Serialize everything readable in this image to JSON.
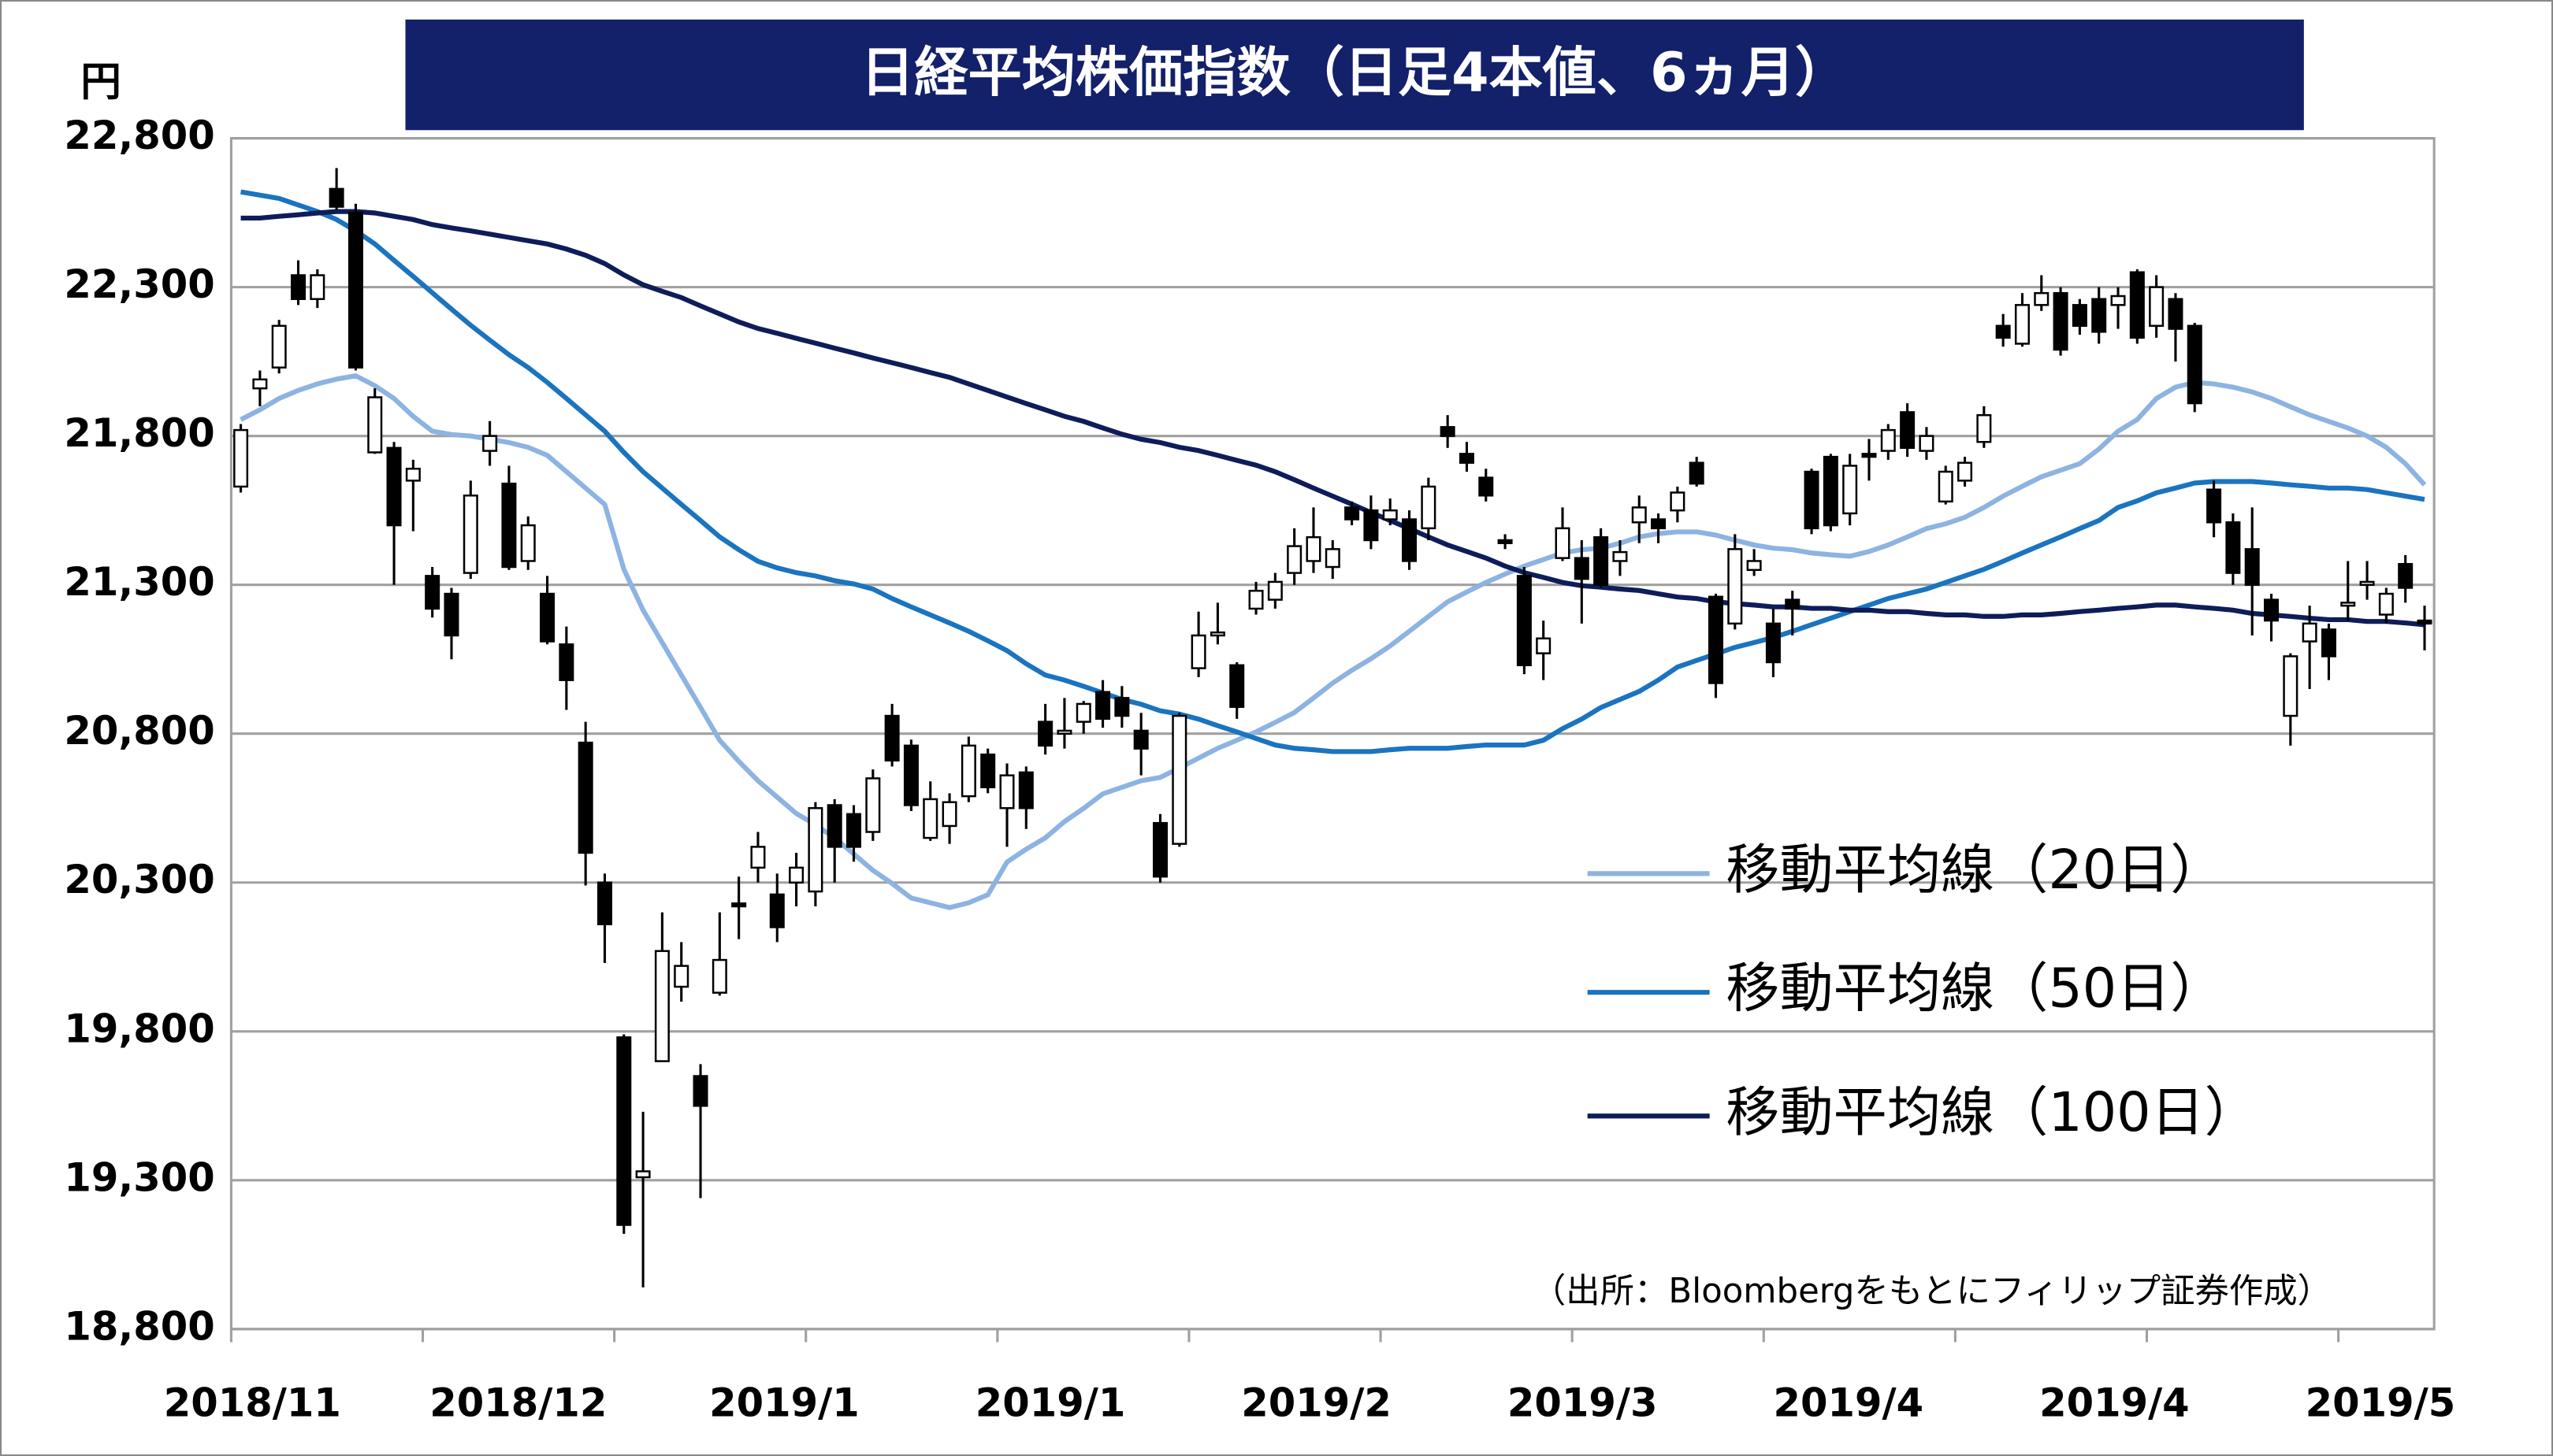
{
  "chart_data": {
    "type": "candlestick",
    "title": "日経平均株価指数（日足4本値、6ヵ月）",
    "y_unit": "円",
    "source": "（出所：Bloombergをもとにフィリップ証券作成）",
    "x_labels": [
      "2018/11",
      "2018/12",
      "2019/1",
      "2019/1",
      "2019/2",
      "2019/3",
      "2019/4",
      "2019/4",
      "2019/5"
    ],
    "ylim": [
      18800,
      22800
    ],
    "yticks": [
      {
        "value": 18800,
        "label": "18,800"
      },
      {
        "value": 19300,
        "label": "19,300"
      },
      {
        "value": 19800,
        "label": "19,800"
      },
      {
        "value": 20300,
        "label": "20,300"
      },
      {
        "value": 20800,
        "label": "20,800"
      },
      {
        "value": 21300,
        "label": "21,300"
      },
      {
        "value": 21800,
        "label": "21,800"
      },
      {
        "value": 22300,
        "label": "22,300"
      },
      {
        "value": 22800,
        "label": "22,800"
      }
    ],
    "grid": true,
    "up_color": "#ffffff",
    "down_color": "#000000",
    "open": [
      21630,
      21960,
      22030,
      22340,
      22260,
      22630,
      22550,
      21745,
      21760,
      21650,
      21330,
      21270,
      21340,
      21750,
      21640,
      21380,
      21270,
      21100,
      20770,
      20300,
      19780,
      19310,
      19700,
      19950,
      19650,
      19930,
      20230,
      20350,
      20260,
      20300,
      20270,
      20560,
      20530,
      20470,
      20860,
      20760,
      20450,
      20490,
      20590,
      20730,
      20550,
      20670,
      20840,
      20800,
      20840,
      20940,
      20920,
      20810,
      20500,
      20430,
      21020,
      21130,
      21030,
      21220,
      21250,
      21340,
      21380,
      21360,
      21560,
      21550,
      21520,
      21520,
      21490,
      21830,
      21740,
      21660,
      21450,
      21330,
      21070,
      21390,
      21390,
      21460,
      21380,
      21510,
      21520,
      21550,
      21710,
      21260,
      21170,
      21350,
      21170,
      21250,
      21680,
      21730,
      21540,
      21740,
      21750,
      21880,
      21750,
      21580,
      21650,
      21780,
      22170,
      22110,
      22240,
      22280,
      22240,
      22260,
      22240,
      22350,
      22170,
      22260,
      22170,
      21620,
      21510,
      21420,
      21250,
      20860,
      21110,
      21150,
      21230,
      21300,
      21200,
      21370,
      21180
    ],
    "high": [
      21840,
      22020,
      22190,
      22390,
      22360,
      22700,
      22580,
      21960,
      21780,
      21720,
      21360,
      21290,
      21650,
      21850,
      21700,
      21530,
      21330,
      21160,
      20840,
      20330,
      19790,
      19530,
      20200,
      20100,
      19690,
      20200,
      20320,
      20470,
      20330,
      20400,
      20570,
      20580,
      20560,
      20680,
      20900,
      20780,
      20640,
      20600,
      20790,
      20750,
      20700,
      20690,
      20900,
      20920,
      20910,
      20980,
      20960,
      20870,
      20530,
      20870,
      21210,
      21240,
      21040,
      21310,
      21340,
      21490,
      21560,
      21450,
      21580,
      21600,
      21590,
      21550,
      21660,
      21870,
      21780,
      21690,
      21470,
      21360,
      21180,
      21560,
      21450,
      21490,
      21450,
      21600,
      21540,
      21630,
      21730,
      21270,
      21470,
      21420,
      21220,
      21280,
      21690,
      21740,
      21740,
      21790,
      21840,
      21910,
      21830,
      21700,
      21730,
      21900,
      22210,
      22280,
      22340,
      22300,
      22260,
      22300,
      22300,
      22360,
      22340,
      22280,
      22180,
      21650,
      21540,
      21560,
      21270,
      21070,
      21230,
      21170,
      21380,
      21380,
      21290,
      21400,
      21230
    ],
    "low": [
      21610,
      21900,
      22010,
      22240,
      22230,
      22560,
      22020,
      21740,
      21300,
      21480,
      21190,
      21050,
      21320,
      21700,
      21350,
      21350,
      21100,
      20880,
      20290,
      20030,
      19120,
      18940,
      19700,
      19900,
      19240,
      19920,
      20110,
      20300,
      20100,
      20220,
      20220,
      20300,
      20370,
      20440,
      20690,
      20540,
      20440,
      20430,
      20570,
      20600,
      20420,
      20480,
      20730,
      20750,
      20800,
      20820,
      20820,
      20660,
      20300,
      20420,
      20990,
      21100,
      20850,
      21200,
      21220,
      21300,
      21340,
      21320,
      21500,
      21420,
      21500,
      21350,
      21450,
      21760,
      21680,
      21580,
      21420,
      21000,
      20980,
      21380,
      21170,
      21290,
      21330,
      21440,
      21440,
      21510,
      21630,
      20920,
      21150,
      21330,
      20990,
      21130,
      21470,
      21480,
      21500,
      21650,
      21720,
      21730,
      21720,
      21570,
      21630,
      21760,
      22100,
      22100,
      22220,
      22070,
      22140,
      22110,
      22160,
      22110,
      22130,
      22050,
      21880,
      21460,
      21300,
      21130,
      21110,
      20760,
      20950,
      20980,
      21180,
      21250,
      21170,
      21240,
      21080
    ],
    "close": [
      21820,
      21990,
      22170,
      22260,
      22340,
      22570,
      22030,
      21930,
      21500,
      21690,
      21220,
      21130,
      21600,
      21800,
      21360,
      21500,
      21110,
      20980,
      20400,
      20160,
      19150,
      19330,
      20070,
      20020,
      19550,
      20040,
      20220,
      20420,
      20150,
      20350,
      20550,
      20420,
      20420,
      20650,
      20710,
      20560,
      20580,
      20570,
      20760,
      20620,
      20660,
      20550,
      20760,
      20810,
      20900,
      20850,
      20860,
      20750,
      20320,
      20860,
      21130,
      21140,
      20890,
      21280,
      21310,
      21430,
      21460,
      21420,
      21520,
      21450,
      21550,
      21380,
      21630,
      21800,
      21710,
      21600,
      21440,
      21030,
      21120,
      21490,
      21320,
      21300,
      21410,
      21560,
      21490,
      21610,
      21640,
      20970,
      21420,
      21380,
      21040,
      21220,
      21490,
      21500,
      21700,
      21730,
      21820,
      21760,
      21800,
      21680,
      21710,
      21870,
      22130,
      22240,
      22280,
      22090,
      22170,
      22150,
      22270,
      22130,
      22300,
      22160,
      21910,
      21510,
      21340,
      21300,
      21180,
      21060,
      21170,
      21060,
      21240,
      21310,
      21270,
      21290,
      21170
    ],
    "series": [
      {
        "name": "移動平均線（20日）",
        "color": "#8db3e2",
        "values": [
          21855,
          21888,
          21926,
          21953,
          21975,
          21991,
          22002,
          21969,
          21926,
          21866,
          21816,
          21805,
          21800,
          21789,
          21778,
          21762,
          21735,
          21680,
          21625,
          21570,
          21352,
          21215,
          21106,
          20997,
          20888,
          20778,
          20707,
          20642,
          20587,
          20532,
          20494,
          20450,
          20396,
          20341,
          20297,
          20248,
          20232,
          20216,
          20232,
          20259,
          20369,
          20412,
          20450,
          20505,
          20549,
          20598,
          20620,
          20642,
          20653,
          20685,
          20718,
          20751,
          20778,
          20806,
          20838,
          20871,
          20920,
          20970,
          21013,
          21052,
          21095,
          21144,
          21194,
          21243,
          21276,
          21308,
          21336,
          21363,
          21385,
          21407,
          21418,
          21423,
          21440,
          21461,
          21472,
          21478,
          21478,
          21467,
          21450,
          21434,
          21423,
          21418,
          21407,
          21401,
          21396,
          21412,
          21434,
          21461,
          21489,
          21505,
          21527,
          21560,
          21598,
          21631,
          21663,
          21685,
          21707,
          21756,
          21816,
          21855,
          21926,
          21964,
          21980,
          21975,
          21964,
          21948,
          21926,
          21898,
          21871,
          21849,
          21827,
          21800,
          21762,
          21707,
          21636
        ]
      },
      {
        "name": "移動平均線（50日）",
        "color": "#1a74bf",
        "values": [
          22620,
          22609,
          22598,
          22576,
          22554,
          22527,
          22489,
          22445,
          22390,
          22336,
          22281,
          22226,
          22172,
          22122,
          22073,
          22030,
          21980,
          21926,
          21871,
          21816,
          21745,
          21680,
          21625,
          21570,
          21516,
          21461,
          21418,
          21379,
          21357,
          21341,
          21330,
          21314,
          21303,
          21286,
          21254,
          21226,
          21199,
          21172,
          21144,
          21112,
          21079,
          21035,
          20997,
          20980,
          20959,
          20937,
          20915,
          20899,
          20877,
          20866,
          20849,
          20827,
          20806,
          20784,
          20762,
          20751,
          20746,
          20740,
          20740,
          20740,
          20746,
          20751,
          20751,
          20751,
          20757,
          20762,
          20762,
          20762,
          20778,
          20817,
          20849,
          20888,
          20915,
          20942,
          20980,
          21024,
          21046,
          21068,
          21090,
          21106,
          21123,
          21144,
          21166,
          21188,
          21210,
          21232,
          21254,
          21270,
          21286,
          21308,
          21330,
          21352,
          21379,
          21407,
          21434,
          21461,
          21489,
          21516,
          21560,
          21582,
          21609,
          21625,
          21642,
          21647,
          21647,
          21647,
          21642,
          21636,
          21631,
          21625,
          21625,
          21620,
          21609,
          21598,
          21587
        ]
      },
      {
        "name": "移動平均線（100日）",
        "color": "#0e1d5a",
        "values": [
          22532,
          22532,
          22538,
          22543,
          22549,
          22554,
          22554,
          22549,
          22538,
          22527,
          22510,
          22499,
          22489,
          22478,
          22467,
          22456,
          22445,
          22428,
          22407,
          22379,
          22341,
          22308,
          22286,
          22265,
          22237,
          22210,
          22183,
          22161,
          22145,
          22128,
          22112,
          22095,
          22079,
          22062,
          22046,
          22030,
          22013,
          21997,
          21975,
          21953,
          21931,
          21909,
          21888,
          21866,
          21849,
          21827,
          21806,
          21789,
          21778,
          21762,
          21751,
          21735,
          21718,
          21702,
          21680,
          21653,
          21625,
          21598,
          21571,
          21543,
          21516,
          21489,
          21461,
          21434,
          21412,
          21390,
          21363,
          21341,
          21325,
          21308,
          21297,
          21292,
          21286,
          21281,
          21270,
          21259,
          21254,
          21243,
          21237,
          21232,
          21226,
          21226,
          21221,
          21221,
          21215,
          21215,
          21210,
          21210,
          21204,
          21199,
          21199,
          21194,
          21194,
          21199,
          21199,
          21204,
          21210,
          21215,
          21221,
          21226,
          21232,
          21232,
          21226,
          21221,
          21215,
          21204,
          21199,
          21194,
          21188,
          21183,
          21183,
          21177,
          21177,
          21172,
          21166
        ]
      }
    ]
  }
}
